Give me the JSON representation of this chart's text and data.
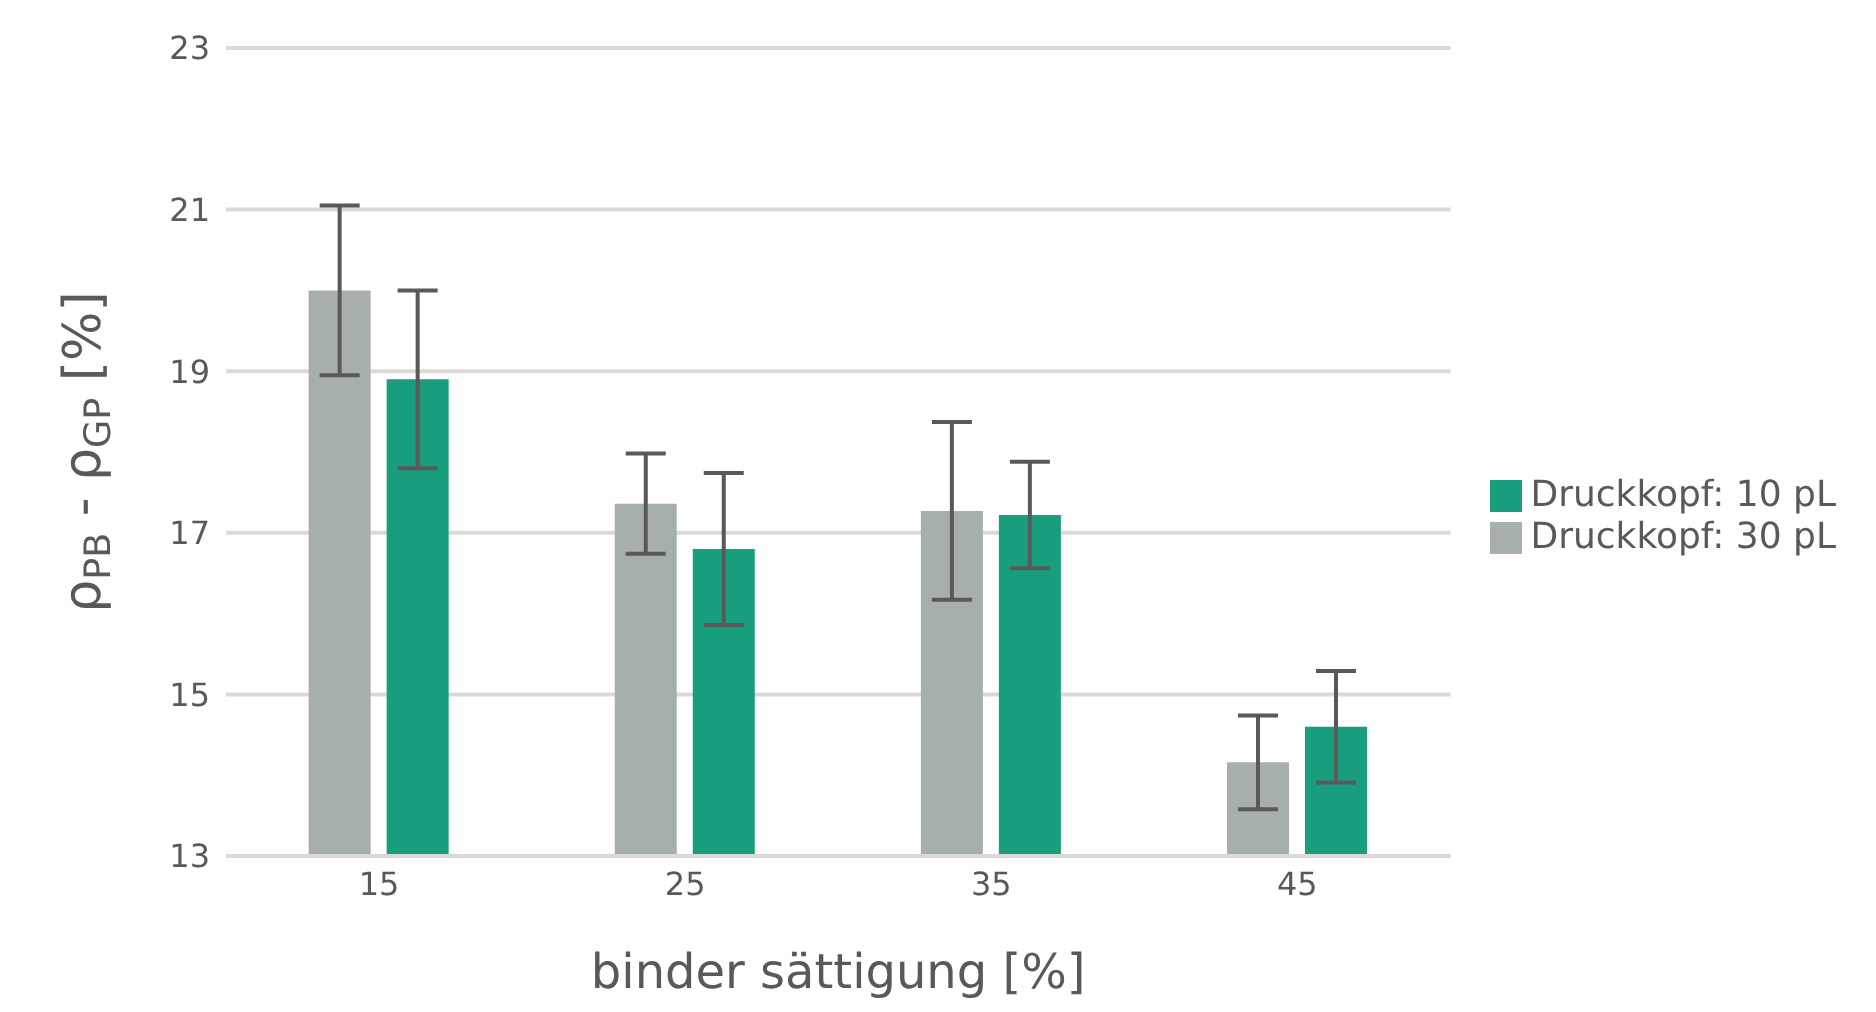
{
  "chart_data": {
    "type": "bar",
    "xlabel": "binder sättigung [%]",
    "ylabel": "ρ$_{PB}$ - ρ$_{GP}$ [%]",
    "categories": [
      "15",
      "25",
      "35",
      "45"
    ],
    "series": [
      {
        "name": "Druckkopf: 30 pL",
        "color": "#a7afac",
        "values": [
          20.0,
          17.36,
          17.27,
          14.16
        ],
        "errors": [
          1.05,
          0.62,
          1.1,
          0.58
        ]
      },
      {
        "name": "Druckkopf: 10 pL",
        "color": "#199e7d",
        "values": [
          18.9,
          16.8,
          17.22,
          14.6
        ],
        "errors": [
          1.1,
          0.94,
          0.66,
          0.69
        ]
      }
    ],
    "ylim": [
      13,
      23
    ],
    "yticks": [
      13,
      15,
      17,
      19,
      21,
      23
    ],
    "grid": "y",
    "legend": "right"
  }
}
